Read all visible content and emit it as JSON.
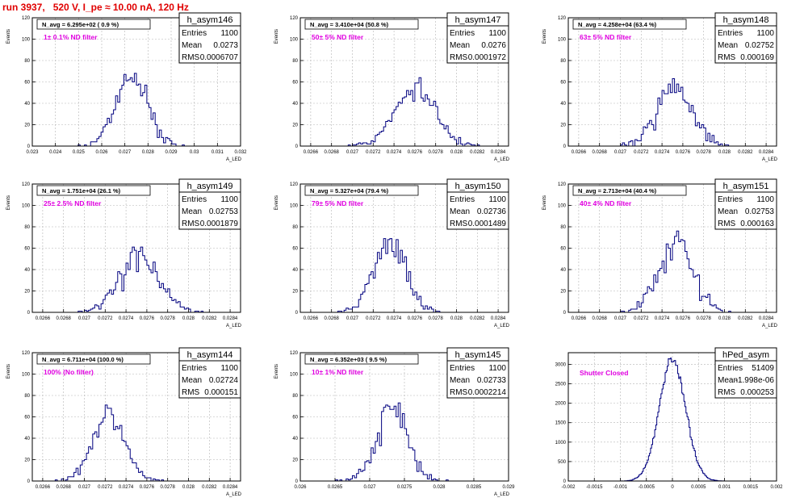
{
  "run_title": "run 3937,   520 V, I_pe ≈ 10.00 nA, 120 Hz",
  "colors": {
    "histogram_line": "#00007f",
    "title_text": "#e00000",
    "filter_text": "#e000e0",
    "axis": "#000000",
    "grid": "#b4b4b4"
  },
  "chart_data": [
    {
      "type": "histogram",
      "name": "h_asym146",
      "ylabel": "Events",
      "xlabel": "A_LED",
      "xlim": [
        0.023,
        0.032
      ],
      "ylim": [
        0,
        120
      ],
      "xticks": [
        "0.023",
        "0.024",
        "0.025",
        "0.026",
        "0.027",
        "0.028",
        "0.029",
        "0.03",
        "0.031",
        "0.032"
      ],
      "yticks": [
        "0",
        "20",
        "40",
        "60",
        "80",
        "100",
        "120"
      ],
      "nbins": 100,
      "stats": {
        "entries_label": "Entries",
        "entries": "1100",
        "mean_label": "Mean",
        "mean": "0.0273",
        "rms_label": "RMS",
        "rms": "0.0006707"
      },
      "navg_text": "N_avg = 6.295e+02 ( 0.9 %)",
      "filter_text": "1± 0.1% ND filter",
      "mean": 0.0273,
      "rms": 0.0006707,
      "peak": 67,
      "seed": 11
    },
    {
      "type": "histogram",
      "name": "h_asym147",
      "ylabel": "Events",
      "xlabel": "A_LED",
      "xlim": [
        0.0265,
        0.0285
      ],
      "ylim": [
        0,
        120
      ],
      "xticks": [
        "0.0266",
        "0.0268",
        "0.027",
        "0.0272",
        "0.0274",
        "0.0276",
        "0.0278",
        "0.028",
        "0.0282",
        "0.0284"
      ],
      "yticks": [
        "0",
        "20",
        "40",
        "60",
        "80",
        "100",
        "120"
      ],
      "nbins": 100,
      "stats": {
        "entries_label": "Entries",
        "entries": "1100",
        "mean_label": "Mean",
        "mean": "0.0276",
        "rms_label": "RMS",
        "rms": "0.0001972"
      },
      "navg_text": "N_avg = 3.410e+04 (50.8 %)",
      "filter_text": "50± 5% ND filter",
      "mean": 0.0276,
      "rms": 0.0001972,
      "peak": 52,
      "seed": 22
    },
    {
      "type": "histogram",
      "name": "h_asym148",
      "ylabel": "Events",
      "xlabel": "A_LED",
      "xlim": [
        0.0265,
        0.0285
      ],
      "ylim": [
        0,
        120
      ],
      "xticks": [
        "0.0266",
        "0.0268",
        "0.027",
        "0.0272",
        "0.0274",
        "0.0276",
        "0.0278",
        "0.028",
        "0.0282",
        "0.0284"
      ],
      "yticks": [
        "0",
        "20",
        "40",
        "60",
        "80",
        "100",
        "120"
      ],
      "nbins": 100,
      "stats": {
        "entries_label": "Entries",
        "entries": "1100",
        "mean_label": "Mean",
        "mean": "0.02752",
        "rms_label": "RMS",
        "rms": "0.000169"
      },
      "navg_text": "N_avg = 4.258e+04 (63.4 %)",
      "filter_text": "63± 5% ND filter",
      "mean": 0.02752,
      "rms": 0.000169,
      "peak": 55,
      "seed": 33
    },
    {
      "type": "histogram",
      "name": "h_asym149",
      "ylabel": "Events",
      "xlabel": "A_LED",
      "xlim": [
        0.0265,
        0.0285
      ],
      "ylim": [
        0,
        120
      ],
      "xticks": [
        "0.0266",
        "0.0268",
        "0.027",
        "0.0272",
        "0.0274",
        "0.0276",
        "0.0278",
        "0.028",
        "0.0282",
        "0.0284"
      ],
      "yticks": [
        "0",
        "20",
        "40",
        "60",
        "80",
        "100",
        "120"
      ],
      "nbins": 100,
      "stats": {
        "entries_label": "Entries",
        "entries": "1100",
        "mean_label": "Mean",
        "mean": "0.02753",
        "rms_label": "RMS",
        "rms": "0.0001879"
      },
      "navg_text": "N_avg = 1.751e+04 (26.1 %)",
      "filter_text": "25± 2.5% ND filter",
      "mean": 0.02753,
      "rms": 0.0001879,
      "peak": 52,
      "seed": 44
    },
    {
      "type": "histogram",
      "name": "h_asym150",
      "ylabel": "Events",
      "xlabel": "A_LED",
      "xlim": [
        0.0265,
        0.0285
      ],
      "ylim": [
        0,
        120
      ],
      "xticks": [
        "0.0266",
        "0.0268",
        "0.027",
        "0.0272",
        "0.0274",
        "0.0276",
        "0.0278",
        "0.028",
        "0.0282",
        "0.0284"
      ],
      "yticks": [
        "0",
        "20",
        "40",
        "60",
        "80",
        "100",
        "120"
      ],
      "nbins": 100,
      "stats": {
        "entries_label": "Entries",
        "entries": "1100",
        "mean_label": "Mean",
        "mean": "0.02736",
        "rms_label": "RMS",
        "rms": "0.0001489"
      },
      "navg_text": "N_avg = 5.327e+04 (79.4 %)",
      "filter_text": "79± 5% ND filter",
      "mean": 0.02736,
      "rms": 0.0001489,
      "peak": 65,
      "seed": 55
    },
    {
      "type": "histogram",
      "name": "h_asym151",
      "ylabel": "Events",
      "xlabel": "A_LED",
      "xlim": [
        0.0265,
        0.0285
      ],
      "ylim": [
        0,
        120
      ],
      "xticks": [
        "0.0266",
        "0.0268",
        "0.027",
        "0.0272",
        "0.0274",
        "0.0276",
        "0.0278",
        "0.028",
        "0.0282",
        "0.0284"
      ],
      "yticks": [
        "0",
        "20",
        "40",
        "60",
        "80",
        "100",
        "120"
      ],
      "nbins": 100,
      "stats": {
        "entries_label": "Entries",
        "entries": "1100",
        "mean_label": "Mean",
        "mean": "0.02753",
        "rms_label": "RMS",
        "rms": "0.000163"
      },
      "navg_text": "N_avg = 2.713e+04 (40.4 %)",
      "filter_text": "40± 4% ND filter",
      "mean": 0.02753,
      "rms": 0.000163,
      "peak": 65,
      "seed": 66
    },
    {
      "type": "histogram",
      "name": "h_asym144",
      "ylabel": "Events",
      "xlabel": "A_LED",
      "xlim": [
        0.0265,
        0.0285
      ],
      "ylim": [
        0,
        120
      ],
      "xticks": [
        "0.0266",
        "0.0268",
        "0.027",
        "0.0272",
        "0.0274",
        "0.0276",
        "0.0278",
        "0.028",
        "0.0282",
        "0.0284"
      ],
      "yticks": [
        "0",
        "20",
        "40",
        "60",
        "80",
        "100",
        "120"
      ],
      "nbins": 100,
      "stats": {
        "entries_label": "Entries",
        "entries": "1100",
        "mean_label": "Mean",
        "mean": "0.02724",
        "rms_label": "RMS",
        "rms": "0.000151"
      },
      "navg_text": "N_avg = 6.711e+04 (100.0 %)",
      "filter_text": "100% (No filter)",
      "mean": 0.02724,
      "rms": 0.000151,
      "peak": 62,
      "seed": 77
    },
    {
      "type": "histogram",
      "name": "h_asym145",
      "ylabel": "Events",
      "xlabel": "A_LED",
      "xlim": [
        0.026,
        0.029
      ],
      "ylim": [
        0,
        120
      ],
      "xticks": [
        "0.026",
        "0.0265",
        "0.027",
        "0.0275",
        "0.028",
        "0.0285",
        "0.029"
      ],
      "yticks": [
        "0",
        "20",
        "40",
        "60",
        "80",
        "100",
        "120"
      ],
      "nbins": 100,
      "stats": {
        "entries_label": "Entries",
        "entries": "1100",
        "mean_label": "Mean",
        "mean": "0.02733",
        "rms_label": "RMS",
        "rms": "0.0002214"
      },
      "navg_text": "N_avg = 6.352e+03 ( 9.5 %)",
      "filter_text": "10± 1% ND filter",
      "mean": 0.02733,
      "rms": 0.0002214,
      "peak": 64,
      "seed": 88
    },
    {
      "type": "histogram",
      "name": "hPed_asym",
      "ylabel": "",
      "xlabel": "",
      "xlim": [
        -0.002,
        0.002
      ],
      "ylim": [
        0,
        3300
      ],
      "xticks": [
        "-0.002",
        "-0.0015",
        "-0.001",
        "-0.0005",
        "0",
        "0.0005",
        "0.001",
        "0.0015",
        "0.002"
      ],
      "yticks": [
        "0",
        "500",
        "1000",
        "1500",
        "2000",
        "2500",
        "3000"
      ],
      "nbins": 200,
      "stats": {
        "entries_label": "Entries",
        "entries": "51409",
        "mean_label": "Mean",
        "mean": "-1.998e-06",
        "rms_label": "RMS",
        "rms": "0.000253"
      },
      "navg_text": "",
      "filter_text": "Shutter Closed",
      "mean": -1.998e-06,
      "rms": 0.000253,
      "peak": 3130,
      "seed": 99
    }
  ]
}
